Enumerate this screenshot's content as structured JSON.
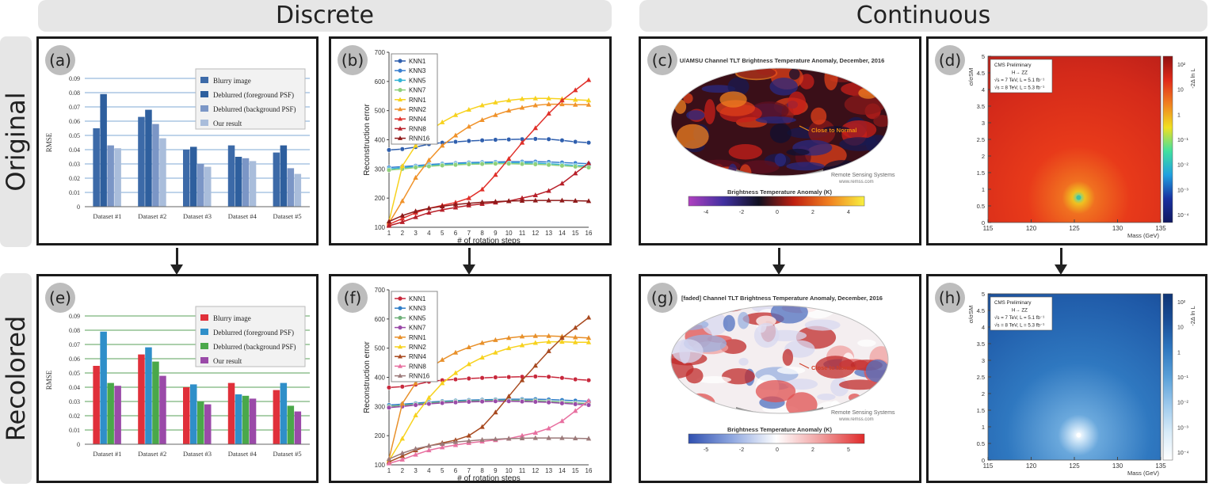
{
  "headers": {
    "discrete": "Discrete",
    "continuous": "Continuous"
  },
  "rows": {
    "original": "Original",
    "recolored": "Recolored"
  },
  "panel_labels": [
    "(a)",
    "(b)",
    "(c)",
    "(d)",
    "(e)",
    "(f)",
    "(g)",
    "(h)"
  ],
  "bar_charts": {
    "categories": [
      "Dataset #1",
      "Dataset #2",
      "Dataset #3",
      "Dataset #4",
      "Dataset #5"
    ],
    "series_names": [
      "Blurry image",
      "Deblurred (foreground PSF)",
      "Deblurred (background PSF)",
      "Our result"
    ],
    "colors_original": [
      "#3c6aa8",
      "#2e5f9e",
      "#7b96c6",
      "#a9bddb"
    ],
    "colors_recolored": [
      "#e0303a",
      "#2f8fc9",
      "#4aa84a",
      "#9a4aa8"
    ]
  },
  "line_charts": {
    "series_names": [
      "KNN1",
      "KNN3",
      "KNN5",
      "KNN7",
      "RNN1",
      "RNN2",
      "RNN4",
      "RNN8",
      "RNN16"
    ],
    "colors_original": [
      "#2f5fae",
      "#3a7fd0",
      "#35b3d6",
      "#8fd07a",
      "#f7d21e",
      "#f0922a",
      "#e0302a",
      "#b8202a",
      "#8e1a1a"
    ],
    "colors_recolored": [
      "#c8283c",
      "#2f7ec8",
      "#6fb07a",
      "#9a4aa8",
      "#e8902a",
      "#f7d21e",
      "#a84a20",
      "#e870a0",
      "#9c7a7a"
    ]
  },
  "map_c": {
    "title": "U/AMSU Channel TLT Brightness Temperature Anomaly, December, 2016",
    "annotation": "Close to Normal",
    "credit": "Remote Sensing Systems",
    "credit_url": "www.remss.com",
    "colorbar_label": "Brightness Temperature Anomaly (K)",
    "ticks": [
      "-4",
      "-2",
      "0",
      "2",
      "4"
    ]
  },
  "map_g": {
    "title": "[faded] Channel TLT Brightness Temperature Anomaly, December, 2016",
    "annotation": "Close to Normal",
    "credit": "Remote Sensing Systems",
    "credit_url": "www.remss.com",
    "colorbar_label": "Brightness Temperature Anomaly (K)",
    "ticks": [
      "-5",
      "-2",
      "0",
      "2",
      "5"
    ]
  },
  "heatmap": {
    "legend_lines": [
      "CMS Preliminary",
      "H→ ZZ",
      "√s = 7 TeV, L = 5.1 fb⁻¹",
      "√s = 8 TeV, L = 5.3 fb⁻¹"
    ],
    "x_ticks": [
      "115",
      "120",
      "125",
      "130",
      "135"
    ],
    "y_ticks": [
      "0",
      "0.5",
      "1",
      "1.5",
      "2",
      "2.5",
      "3",
      "3.5",
      "4",
      "4.5",
      "5"
    ],
    "xlabel": "Mass (GeV)",
    "ylabel": "σ/σSM",
    "zlabel": "-2Δ ln L",
    "z_ticks": [
      "10⁻⁴",
      "10⁻³",
      "10⁻²",
      "10⁻¹",
      "1",
      "10",
      "10²"
    ]
  },
  "chart_data": [
    {
      "type": "bar",
      "panel": "(a)",
      "categories": [
        "Dataset #1",
        "Dataset #2",
        "Dataset #3",
        "Dataset #4",
        "Dataset #5"
      ],
      "series": [
        {
          "name": "Blurry image",
          "values": [
            0.055,
            0.063,
            0.04,
            0.043,
            0.038
          ]
        },
        {
          "name": "Deblurred (foreground PSF)",
          "values": [
            0.079,
            0.068,
            0.042,
            0.035,
            0.043
          ]
        },
        {
          "name": "Deblurred (background PSF)",
          "values": [
            0.043,
            0.058,
            0.03,
            0.034,
            0.027
          ]
        },
        {
          "name": "Our result",
          "values": [
            0.041,
            0.048,
            0.028,
            0.032,
            0.023
          ]
        }
      ],
      "ylabel": "RMSE",
      "ylim": [
        0,
        0.09
      ],
      "yticks": [
        "0",
        "0.01",
        "0.02",
        "0.03",
        "0.04",
        "0.05",
        "0.06",
        "0.07",
        "0.08",
        "0.09"
      ],
      "legend": "top-right"
    },
    {
      "type": "line",
      "panel": "(b)",
      "x": [
        1,
        2,
        3,
        4,
        5,
        6,
        7,
        8,
        9,
        10,
        11,
        12,
        13,
        14,
        15,
        16
      ],
      "series": [
        {
          "name": "KNN1",
          "values": [
            365,
            368,
            375,
            385,
            390,
            393,
            396,
            398,
            400,
            401,
            402,
            403,
            402,
            398,
            393,
            390
          ]
        },
        {
          "name": "KNN3",
          "values": [
            305,
            308,
            311,
            315,
            318,
            320,
            322,
            323,
            324,
            325,
            325,
            325,
            324,
            322,
            320,
            318
          ]
        },
        {
          "name": "KNN5",
          "values": [
            300,
            304,
            308,
            312,
            315,
            317,
            319,
            320,
            321,
            321,
            321,
            320,
            318,
            315,
            312,
            310
          ]
        },
        {
          "name": "KNN7",
          "values": [
            296,
            300,
            305,
            309,
            312,
            314,
            316,
            317,
            318,
            318,
            317,
            316,
            314,
            311,
            308,
            305
          ]
        },
        {
          "name": "RNN1",
          "values": [
            120,
            310,
            380,
            430,
            460,
            485,
            503,
            518,
            528,
            535,
            540,
            542,
            542,
            540,
            537,
            535
          ]
        },
        {
          "name": "RNN2",
          "values": [
            115,
            190,
            270,
            330,
            380,
            415,
            445,
            468,
            485,
            500,
            510,
            518,
            522,
            522,
            520,
            520
          ]
        },
        {
          "name": "RNN4",
          "values": [
            110,
            130,
            150,
            165,
            175,
            185,
            200,
            230,
            280,
            335,
            390,
            440,
            490,
            535,
            570,
            605
          ]
        },
        {
          "name": "RNN8",
          "values": [
            105,
            118,
            135,
            150,
            160,
            168,
            175,
            180,
            185,
            190,
            200,
            210,
            225,
            250,
            285,
            320
          ]
        },
        {
          "name": "RNN16",
          "values": [
            120,
            140,
            155,
            165,
            172,
            178,
            182,
            186,
            188,
            190,
            191,
            192,
            192,
            192,
            191,
            190
          ]
        }
      ],
      "xlabel": "# of rotation steps",
      "ylabel": "Reconstruction error",
      "ylim": [
        100,
        700
      ],
      "yticks": [
        "100",
        "200",
        "300",
        "400",
        "500",
        "600",
        "700"
      ],
      "legend": "top-left"
    },
    {
      "type": "heatmap",
      "panel": "(d)",
      "xlabel": "Mass (GeV)",
      "xlim": [
        115,
        135
      ],
      "ylabel": "σ/σSM",
      "ylim": [
        0,
        5
      ],
      "zlabel": "-2Δ ln L",
      "minimum": {
        "x": 125.5,
        "y": 0.75
      }
    }
  ]
}
